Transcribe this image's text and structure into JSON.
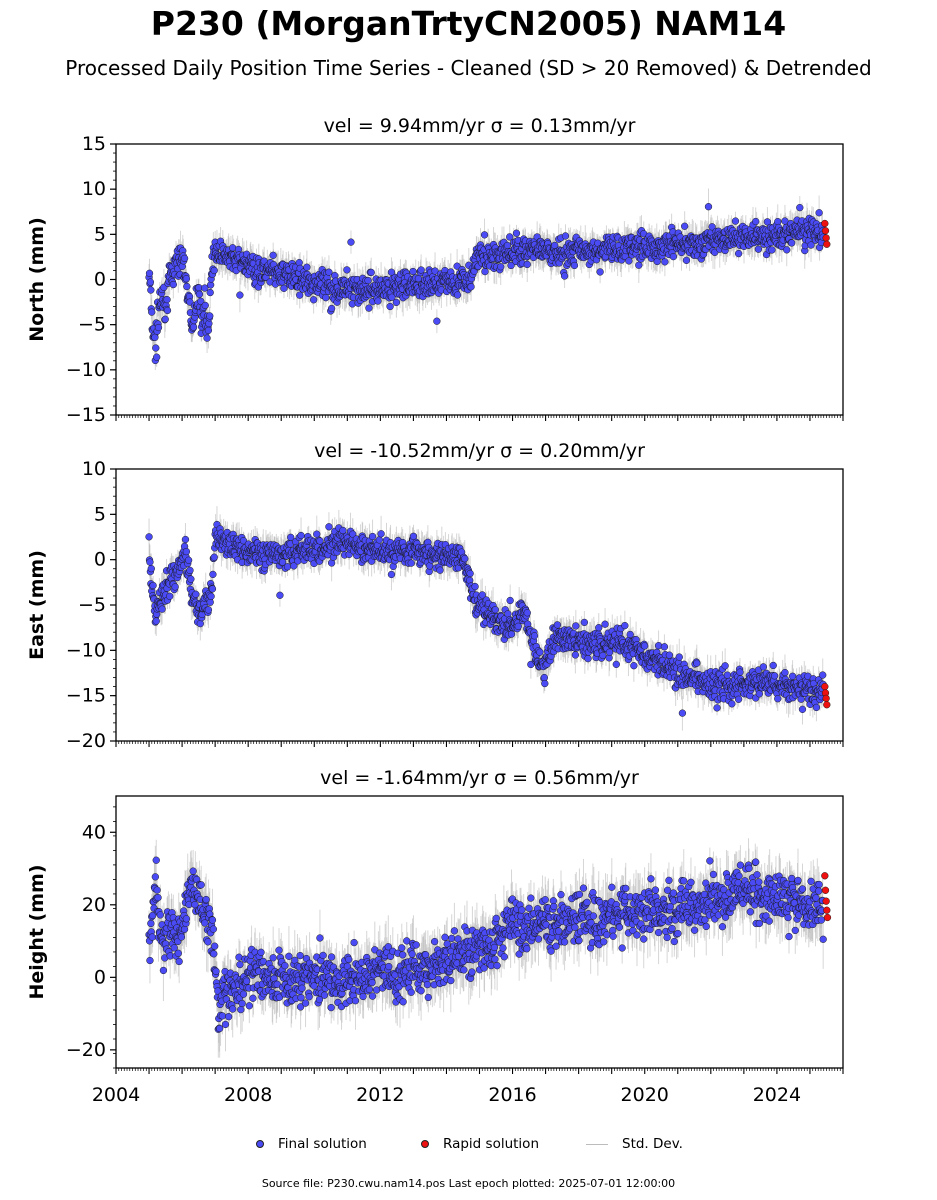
{
  "page": {
    "title": "P230 (MorganTrtyCN2005) NAM14",
    "subtitle": "Processed Daily Position Time Series - Cleaned (SD > 20 Removed) & Detrended",
    "footer": "Source file: P230.cwu.nam14.pos  Last epoch plotted: 2025-07-01 12:00:00"
  },
  "legend": {
    "final_label": "Final solution",
    "rapid_label": "Rapid solution",
    "std_label": "Std. Dev.",
    "placement": "bottom-center"
  },
  "colors": {
    "final": "#4b4bf5",
    "rapid": "#ee1111",
    "std": "#b5b5b5",
    "edge": "#1a1a1a"
  },
  "chart_data": [
    {
      "type": "scatter",
      "title": "vel = 9.94mm/yr   σ = 0.13mm/yr",
      "ylabel": "North (mm)",
      "xlim": [
        2004,
        2026
      ],
      "ylim": [
        -15,
        15
      ],
      "yticks": [
        -15,
        -10,
        -5,
        0,
        5,
        10,
        15
      ],
      "xticks": [
        2004,
        2008,
        2012,
        2016,
        2020,
        2024
      ],
      "show_xtick_labels": false,
      "grid": false,
      "series": [
        {
          "name": "Final solution",
          "x": [
            2005.0,
            2005.1,
            2005.2,
            2005.3,
            2005.4,
            2005.5,
            2005.6,
            2005.8,
            2006.0,
            2006.2,
            2006.3,
            2006.4,
            2006.5,
            2006.6,
            2006.8,
            2006.9,
            2007.0,
            2007.3,
            2007.6,
            2008.0,
            2008.5,
            2009.0,
            2009.5,
            2010.0,
            2010.5,
            2011.0,
            2011.5,
            2012.0,
            2012.5,
            2013.0,
            2013.5,
            2014.0,
            2014.5,
            2014.7,
            2014.9,
            2015.3,
            2015.8,
            2016.2,
            2016.5,
            2017.0,
            2017.5,
            2018.0,
            2018.5,
            2019.0,
            2019.5,
            2020.0,
            2020.5,
            2021.0,
            2021.5,
            2022.0,
            2022.5,
            2023.0,
            2023.5,
            2024.0,
            2024.5,
            2025.0,
            2025.4
          ],
          "y": [
            1.0,
            -5.0,
            -7.5,
            -4.0,
            -2.0,
            -3.5,
            -0.5,
            1.5,
            2.5,
            -2.0,
            -6.0,
            -3.5,
            -1.5,
            -4.0,
            -5.0,
            1.5,
            3.0,
            2.5,
            2.2,
            1.5,
            0.8,
            0.5,
            0.2,
            -0.5,
            -1.0,
            -0.8,
            -1.2,
            -1.0,
            -0.8,
            -0.5,
            -0.5,
            -0.2,
            0.0,
            -0.5,
            2.5,
            2.5,
            2.8,
            3.2,
            3.5,
            2.8,
            3.0,
            3.2,
            3.0,
            3.5,
            3.5,
            3.8,
            3.5,
            4.0,
            3.8,
            4.2,
            4.5,
            4.8,
            5.0,
            4.8,
            5.2,
            5.5,
            5.3
          ]
        },
        {
          "name": "Rapid solution",
          "x": [
            2025.45,
            2025.47,
            2025.49,
            2025.51
          ],
          "y": [
            6.2,
            5.4,
            4.6,
            3.9
          ]
        }
      ]
    },
    {
      "type": "scatter",
      "title": "vel = -10.52mm/yr   σ = 0.20mm/yr",
      "ylabel": "East (mm)",
      "xlim": [
        2004,
        2026
      ],
      "ylim": [
        -20,
        10
      ],
      "yticks": [
        -20,
        -15,
        -10,
        -5,
        0,
        5,
        10
      ],
      "xticks": [
        2004,
        2008,
        2012,
        2016,
        2020,
        2024
      ],
      "show_xtick_labels": false,
      "grid": false,
      "series": [
        {
          "name": "Final solution",
          "x": [
            2005.0,
            2005.1,
            2005.2,
            2005.3,
            2005.5,
            2005.7,
            2005.9,
            2006.1,
            2006.3,
            2006.5,
            2006.7,
            2006.9,
            2007.0,
            2007.3,
            2007.6,
            2008.0,
            2008.5,
            2009.0,
            2009.5,
            2010.0,
            2010.5,
            2011.0,
            2011.5,
            2012.0,
            2012.5,
            2013.0,
            2013.5,
            2014.0,
            2014.5,
            2014.7,
            2015.0,
            2015.5,
            2016.0,
            2016.3,
            2016.6,
            2016.9,
            2017.3,
            2017.7,
            2018.0,
            2018.5,
            2019.0,
            2019.5,
            2020.0,
            2020.5,
            2021.0,
            2021.5,
            2022.0,
            2022.5,
            2023.0,
            2023.5,
            2024.0,
            2024.5,
            2025.0,
            2025.4
          ],
          "y": [
            1.5,
            -4.0,
            -6.0,
            -5.0,
            -3.0,
            -2.0,
            -1.0,
            1.0,
            -4.0,
            -6.0,
            -5.0,
            -3.5,
            2.5,
            2.0,
            1.5,
            1.0,
            0.5,
            0.8,
            1.0,
            1.2,
            1.5,
            1.8,
            1.2,
            1.0,
            1.2,
            1.0,
            0.5,
            0.5,
            0.0,
            -2.5,
            -5.5,
            -6.5,
            -7.5,
            -5.5,
            -9.0,
            -12.5,
            -8.5,
            -9.0,
            -8.8,
            -9.5,
            -9.0,
            -9.5,
            -10.5,
            -11.5,
            -12.5,
            -13.0,
            -13.5,
            -14.0,
            -14.0,
            -13.5,
            -13.5,
            -14.0,
            -14.5,
            -14.5
          ]
        },
        {
          "name": "Rapid solution",
          "x": [
            2025.45,
            2025.47,
            2025.49,
            2025.51
          ],
          "y": [
            -14.0,
            -14.7,
            -15.3,
            -16.0
          ]
        }
      ]
    },
    {
      "type": "scatter",
      "title": "vel = -1.64mm/yr   σ = 0.56mm/yr",
      "ylabel": "Height (mm)",
      "xlim": [
        2004,
        2026
      ],
      "ylim": [
        -25,
        50
      ],
      "yticks": [
        -20,
        0,
        20,
        40
      ],
      "xticks": [
        2004,
        2008,
        2012,
        2016,
        2020,
        2024
      ],
      "xticklabels": [
        "2004",
        "2008",
        "2012",
        "2016",
        "2020",
        "2024"
      ],
      "show_xtick_labels": true,
      "grid": false,
      "series": [
        {
          "name": "Final solution",
          "x": [
            2005.0,
            2005.1,
            2005.2,
            2005.3,
            2005.5,
            2005.7,
            2005.9,
            2006.1,
            2006.3,
            2006.5,
            2006.7,
            2006.9,
            2007.1,
            2007.4,
            2007.7,
            2008.0,
            2008.5,
            2009.0,
            2009.5,
            2010.0,
            2010.5,
            2011.0,
            2011.5,
            2012.0,
            2012.5,
            2013.0,
            2013.5,
            2014.0,
            2014.5,
            2015.0,
            2015.5,
            2016.0,
            2016.5,
            2017.0,
            2017.5,
            2018.0,
            2018.5,
            2019.0,
            2019.5,
            2020.0,
            2020.5,
            2021.0,
            2021.5,
            2022.0,
            2022.5,
            2023.0,
            2023.5,
            2024.0,
            2024.5,
            2025.0,
            2025.4
          ],
          "y": [
            5.0,
            18.0,
            25.0,
            15.0,
            10.0,
            12.0,
            8.0,
            20.0,
            25.0,
            20.0,
            18.0,
            15.0,
            -8.0,
            -5.0,
            -2.0,
            0.0,
            0.0,
            -1.0,
            0.0,
            1.0,
            0.0,
            -2.0,
            0.0,
            2.0,
            0.0,
            3.0,
            2.0,
            5.0,
            7.0,
            8.0,
            10.0,
            15.0,
            13.0,
            15.0,
            16.0,
            17.0,
            16.0,
            18.0,
            17.0,
            18.0,
            18.0,
            19.0,
            20.0,
            22.0,
            22.0,
            25.0,
            22.0,
            22.0,
            22.0,
            20.0,
            19.0
          ]
        },
        {
          "name": "Rapid solution",
          "x": [
            2025.45,
            2025.47,
            2025.49,
            2025.51,
            2025.53
          ],
          "y": [
            28.0,
            24.0,
            21.0,
            18.5,
            16.5
          ]
        }
      ]
    }
  ]
}
